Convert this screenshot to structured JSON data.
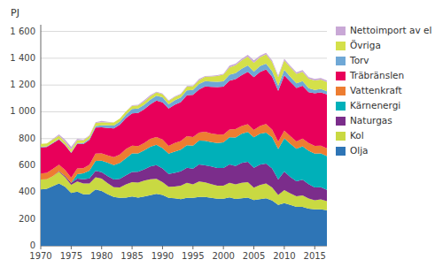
{
  "chart_data": {
    "type": "area",
    "stacked": true,
    "y_label": "PJ",
    "x": [
      1970,
      1971,
      1972,
      1973,
      1974,
      1975,
      1976,
      1977,
      1978,
      1979,
      1980,
      1981,
      1982,
      1983,
      1984,
      1985,
      1986,
      1987,
      1988,
      1989,
      1990,
      1991,
      1992,
      1993,
      1994,
      1995,
      1996,
      1997,
      1998,
      1999,
      2000,
      2001,
      2002,
      2003,
      2004,
      2005,
      2006,
      2007,
      2008,
      2009,
      2010,
      2011,
      2012,
      2013,
      2014,
      2015,
      2016,
      2017
    ],
    "series": [
      {
        "name": "Olja",
        "color": "#2e75b6",
        "values": [
          420,
          425,
          445,
          465,
          440,
          395,
          405,
          385,
          385,
          420,
          410,
          385,
          365,
          358,
          360,
          368,
          360,
          368,
          378,
          388,
          380,
          358,
          355,
          348,
          358,
          358,
          365,
          365,
          358,
          352,
          352,
          362,
          350,
          355,
          360,
          342,
          348,
          355,
          338,
          305,
          318,
          305,
          290,
          290,
          278,
          272,
          272,
          265
        ]
      },
      {
        "name": "Kol",
        "color": "#c9d942",
        "values": [
          75,
          72,
          75,
          88,
          72,
          60,
          75,
          80,
          80,
          92,
          92,
          82,
          72,
          78,
          98,
          108,
          112,
          118,
          118,
          112,
          95,
          82,
          88,
          100,
          112,
          100,
          115,
          108,
          102,
          96,
          96,
          108,
          108,
          115,
          115,
          92,
          105,
          110,
          98,
          75,
          98,
          86,
          80,
          86,
          75,
          68,
          75,
          68
        ]
      },
      {
        "name": "Naturgas",
        "color": "#7b2d8b",
        "values": [
          0,
          0,
          0,
          5,
          10,
          15,
          22,
          32,
          38,
          48,
          48,
          52,
          58,
          64,
          68,
          75,
          80,
          85,
          96,
          102,
          102,
          96,
          102,
          108,
          112,
          118,
          128,
          128,
          132,
          132,
          132,
          138,
          138,
          148,
          152,
          148,
          152,
          148,
          142,
          115,
          138,
          122,
          112,
          118,
          108,
          96,
          90,
          85
        ]
      },
      {
        "name": "Kärnenergi",
        "color": "#00b0b9",
        "values": [
          0,
          0,
          0,
          0,
          0,
          0,
          32,
          44,
          58,
          74,
          85,
          102,
          108,
          118,
          128,
          138,
          138,
          142,
          148,
          152,
          152,
          152,
          158,
          162,
          168,
          172,
          178,
          182,
          182,
          188,
          192,
          202,
          212,
          218,
          222,
          228,
          232,
          232,
          232,
          228,
          248,
          248,
          242,
          248,
          248,
          252,
          252,
          252
        ]
      },
      {
        "name": "Vattenkraft",
        "color": "#ed7d31",
        "values": [
          44,
          48,
          54,
          48,
          44,
          38,
          44,
          38,
          44,
          54,
          54,
          54,
          58,
          64,
          68,
          58,
          54,
          54,
          58,
          58,
          64,
          58,
          64,
          64,
          68,
          64,
          58,
          68,
          64,
          64,
          58,
          58,
          64,
          58,
          58,
          54,
          58,
          64,
          58,
          54,
          58,
          58,
          54,
          58,
          58,
          58,
          58,
          58
        ]
      },
      {
        "name": "Träbränslen",
        "color": "#e8005a",
        "values": [
          195,
          192,
          192,
          188,
          185,
          185,
          185,
          180,
          185,
          195,
          195,
          205,
          215,
          222,
          232,
          242,
          248,
          252,
          258,
          272,
          278,
          278,
          285,
          290,
          305,
          315,
          322,
          338,
          348,
          352,
          358,
          365,
          372,
          380,
          392,
          395,
          402,
          408,
          395,
          380,
          412,
          405,
          400,
          395,
          380,
          392,
          398,
          402
        ]
      },
      {
        "name": "Torv",
        "color": "#6fa8d6",
        "values": [
          5,
          5,
          5,
          5,
          5,
          5,
          5,
          8,
          10,
          12,
          16,
          19,
          22,
          24,
          26,
          32,
          32,
          34,
          35,
          37,
          37,
          32,
          34,
          35,
          37,
          37,
          42,
          40,
          40,
          40,
          40,
          44,
          44,
          48,
          48,
          42,
          44,
          42,
          40,
          37,
          42,
          37,
          35,
          34,
          30,
          26,
          26,
          23
        ]
      },
      {
        "name": "Övriga",
        "color": "#d4e04a",
        "values": [
          22,
          22,
          22,
          22,
          20,
          20,
          20,
          20,
          20,
          22,
          22,
          22,
          22,
          22,
          24,
          24,
          24,
          24,
          24,
          24,
          24,
          24,
          24,
          24,
          28,
          28,
          28,
          34,
          38,
          44,
          50,
          55,
          60,
          62,
          66,
          66,
          66,
          70,
          70,
          65,
          70,
          70,
          70,
          70,
          70,
          70,
          70,
          70
        ]
      },
      {
        "name": "Nettoimport av el",
        "color": "#c9a8d6",
        "values": [
          0,
          0,
          5,
          10,
          16,
          22,
          10,
          5,
          5,
          5,
          10,
          5,
          0,
          0,
          0,
          5,
          5,
          10,
          10,
          5,
          5,
          5,
          5,
          5,
          5,
          5,
          10,
          5,
          5,
          5,
          5,
          12,
          12,
          12,
          12,
          18,
          12,
          12,
          12,
          12,
          12,
          12,
          12,
          12,
          12,
          12,
          12,
          12
        ]
      }
    ],
    "xlim": [
      1970,
      2017
    ],
    "xticks": [
      1970,
      1975,
      1980,
      1985,
      1990,
      1995,
      2000,
      2005,
      2010,
      2015
    ],
    "ylim": [
      0,
      1650
    ],
    "yticks": [
      0,
      200,
      400,
      600,
      800,
      {
        "value": 1000,
        "label": "1 000"
      },
      {
        "value": 1200,
        "label": "1 200"
      },
      {
        "value": 1400,
        "label": "1 400"
      },
      {
        "value": 1600,
        "label": "1 600"
      }
    ],
    "grid": true,
    "legend": "right"
  }
}
